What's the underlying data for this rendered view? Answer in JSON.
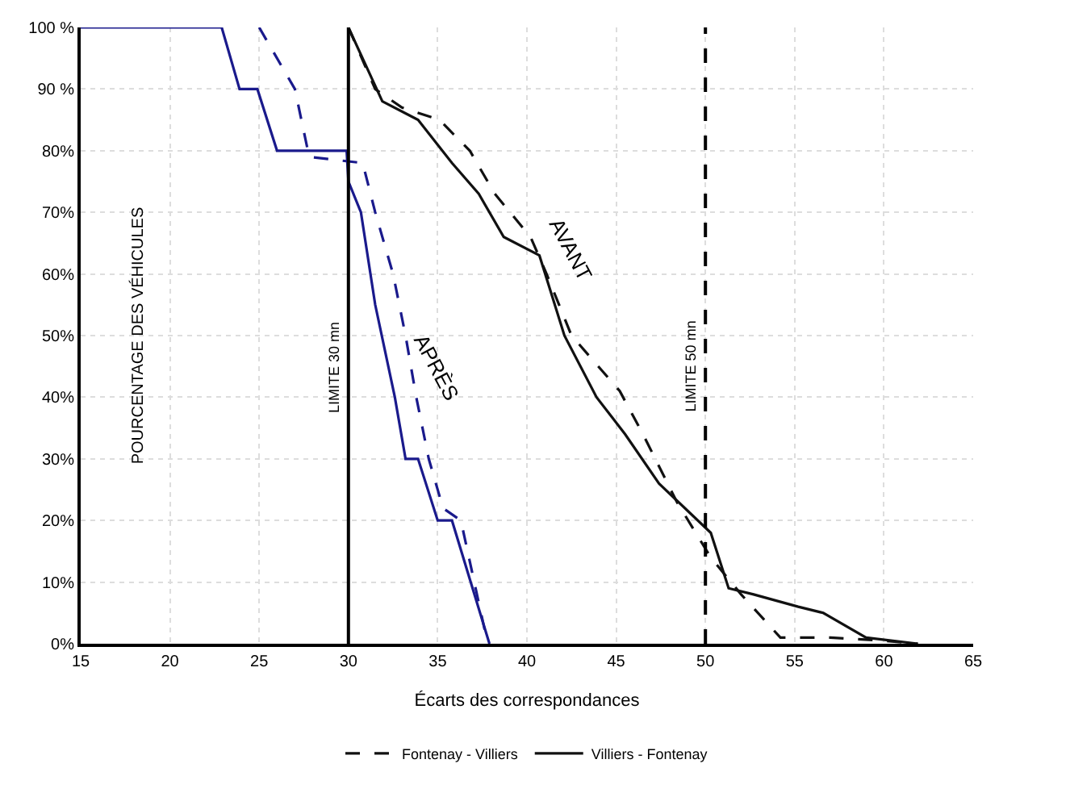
{
  "chart_data": {
    "type": "line",
    "xlabel": "Écarts des correspondances",
    "xlim": [
      15,
      65
    ],
    "xticks": [
      15,
      20,
      25,
      30,
      35,
      40,
      45,
      50,
      55,
      60,
      65
    ],
    "ylim": [
      0,
      100
    ],
    "yticks": [
      {
        "value": 0,
        "label": "0%"
      },
      {
        "value": 10,
        "label": "10%"
      },
      {
        "value": 20,
        "label": "20%"
      },
      {
        "value": 30,
        "label": "30%"
      },
      {
        "value": 40,
        "label": "40%"
      },
      {
        "value": 50,
        "label": "50%"
      },
      {
        "value": 60,
        "label": "60%"
      },
      {
        "value": 70,
        "label": "70%"
      },
      {
        "value": 80,
        "label": "80%"
      },
      {
        "value": 90,
        "label": "90 %"
      },
      {
        "value": 100,
        "label": "100 %"
      }
    ],
    "grid": true,
    "legend": "bottom",
    "marker": "none",
    "series": [
      {
        "color": "#1a1a8c",
        "line_style": "solid",
        "x": [
          15,
          22.9,
          23.9,
          24.9,
          26,
          29.9,
          30,
          30.7,
          31.5,
          32.6,
          33.2,
          33.9,
          35,
          35.8,
          37.9
        ],
        "values": [
          100,
          100,
          90,
          90,
          80,
          80,
          75,
          70,
          55,
          40,
          30,
          30,
          20,
          20,
          0
        ]
      },
      {
        "color": "#1a1a8c",
        "line_style": "dashed",
        "x": [
          25,
          27,
          27.8,
          30.8,
          31.5,
          32.5,
          33.2,
          33.8,
          34.5,
          35.3,
          36.3,
          37.8
        ],
        "values": [
          100,
          90,
          79,
          78,
          70,
          60,
          50,
          40,
          30,
          22,
          20,
          0
        ]
      },
      {
        "name": "Fontenay - Villiers",
        "color": "#111111",
        "line_style": "dashed",
        "x": [
          30,
          31.5,
          33,
          35.1,
          36.8,
          38.2,
          40.2,
          41.1,
          42.5,
          45.2,
          46.5,
          48.4,
          50.3,
          52,
          54.2,
          57,
          60,
          61.9
        ],
        "values": [
          100,
          90,
          87,
          85,
          80,
          73,
          66,
          60,
          50,
          41,
          34,
          23,
          14,
          8,
          1,
          1,
          0.5,
          0
        ]
      },
      {
        "name": "Villiers - Fontenay",
        "color": "#111111",
        "line_style": "solid",
        "x": [
          30,
          31.9,
          33.9,
          35.8,
          37.3,
          38.7,
          40.7,
          42.1,
          43.9,
          45.5,
          47.4,
          50.3,
          51.3,
          52.7,
          55.2,
          56.6,
          59,
          61.9
        ],
        "values": [
          100,
          88,
          85,
          78,
          73,
          66,
          63,
          50,
          40,
          34,
          26,
          18,
          9,
          8,
          6,
          5,
          1,
          0
        ]
      }
    ],
    "ref_lines": [
      {
        "axis": "x",
        "value": 30,
        "label": "LIMITE 30 mn",
        "line_style": "solid",
        "color": "#000000"
      },
      {
        "axis": "x",
        "value": 50,
        "label": "LIMITE 50 mn",
        "line_style": "dashed",
        "color": "#000000"
      }
    ],
    "annotations": [
      "POURCENTAGE DES VÉHICULES",
      {
        "text": "AVANT",
        "x": 41,
        "y": 64
      },
      {
        "text": "APRÈS",
        "x": 33.5,
        "y": 45
      }
    ]
  }
}
